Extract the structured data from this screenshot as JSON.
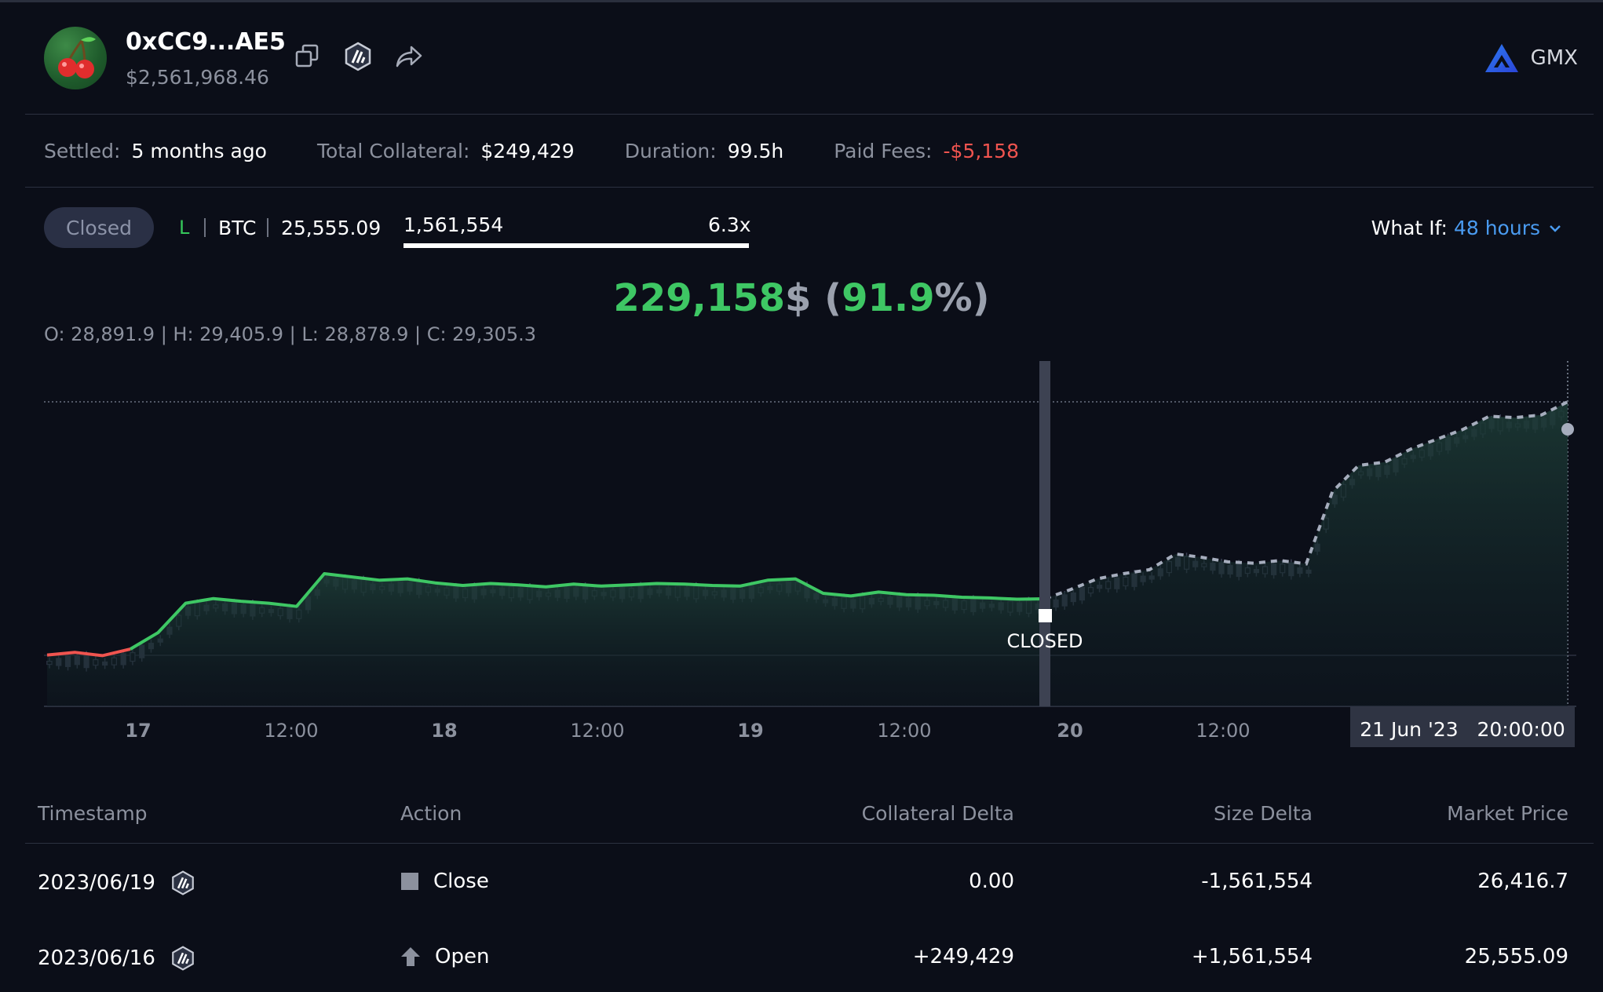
{
  "header": {
    "address": "0xCC9...AE5",
    "value": "$2,561,968.46",
    "avatar_icon": "cherry-icon",
    "protocol": "GMX"
  },
  "stats": [
    {
      "label": "Settled:",
      "value": "5 months ago"
    },
    {
      "label": "Total Collateral:",
      "value": "$249,429"
    },
    {
      "label": "Duration:",
      "value": "99.5h"
    },
    {
      "label": "Paid Fees:",
      "value": "-$5,158"
    }
  ],
  "position": {
    "status": "Closed",
    "side": "L",
    "symbol": "BTC",
    "entry_price": "25,555.09",
    "size": "1,561,554",
    "leverage": "6.3x",
    "what_if_label": "What If:",
    "what_if_value": "48 hours"
  },
  "pnl": {
    "amount": "229,158",
    "currency": "$",
    "percent_open": " (",
    "percent": "91.9",
    "percent_close": "%)"
  },
  "ohlc": "O: 28,891.9 | H: 29,405.9 | L: 28,878.9 | C: 29,305.3",
  "colors": {
    "profit": "#3ec764",
    "loss": "#f0544f",
    "accent": "#4a9bf0",
    "bg": "#0b0e18"
  },
  "chart_data": {
    "type": "line",
    "x_ticks": [
      "17",
      "12:00",
      "18",
      "12:00",
      "19",
      "12:00",
      "20",
      "12:00"
    ],
    "cursor_label": "21 Jun '23   20:00:00",
    "marker_label": "CLOSED",
    "series": [
      {
        "values": [
          25560,
          25600,
          25550,
          25650,
          25900,
          26350,
          26420,
          26380,
          26350,
          26300,
          26800,
          26750,
          26700,
          26720,
          26660,
          26620,
          26650,
          26630,
          26600,
          26640,
          26610,
          26630,
          26650,
          26640,
          26620,
          26610,
          26700,
          26720,
          26500,
          26460,
          26520,
          26480,
          26470,
          26440,
          26430,
          26410,
          26417
        ]
      },
      {
        "values": [
          26417,
          26560,
          26720,
          26800,
          26860,
          27100,
          27050,
          26980,
          26960,
          27000,
          26950,
          28050,
          28450,
          28500,
          28700,
          28850,
          29000,
          29200,
          29180,
          29220,
          29420
        ]
      }
    ]
  },
  "table": {
    "headers": [
      "Timestamp",
      "Action",
      "Collateral Delta",
      "Size Delta",
      "Market Price"
    ],
    "rows": [
      {
        "timestamp": "2023/06/19",
        "action": "Close",
        "collateral_delta": "0.00",
        "size_delta": "-1,561,554",
        "market_price": "26,416.7"
      },
      {
        "timestamp": "2023/06/16",
        "action": "Open",
        "collateral_delta": "+249,429",
        "size_delta": "+1,561,554",
        "market_price": "25,555.09"
      }
    ]
  }
}
